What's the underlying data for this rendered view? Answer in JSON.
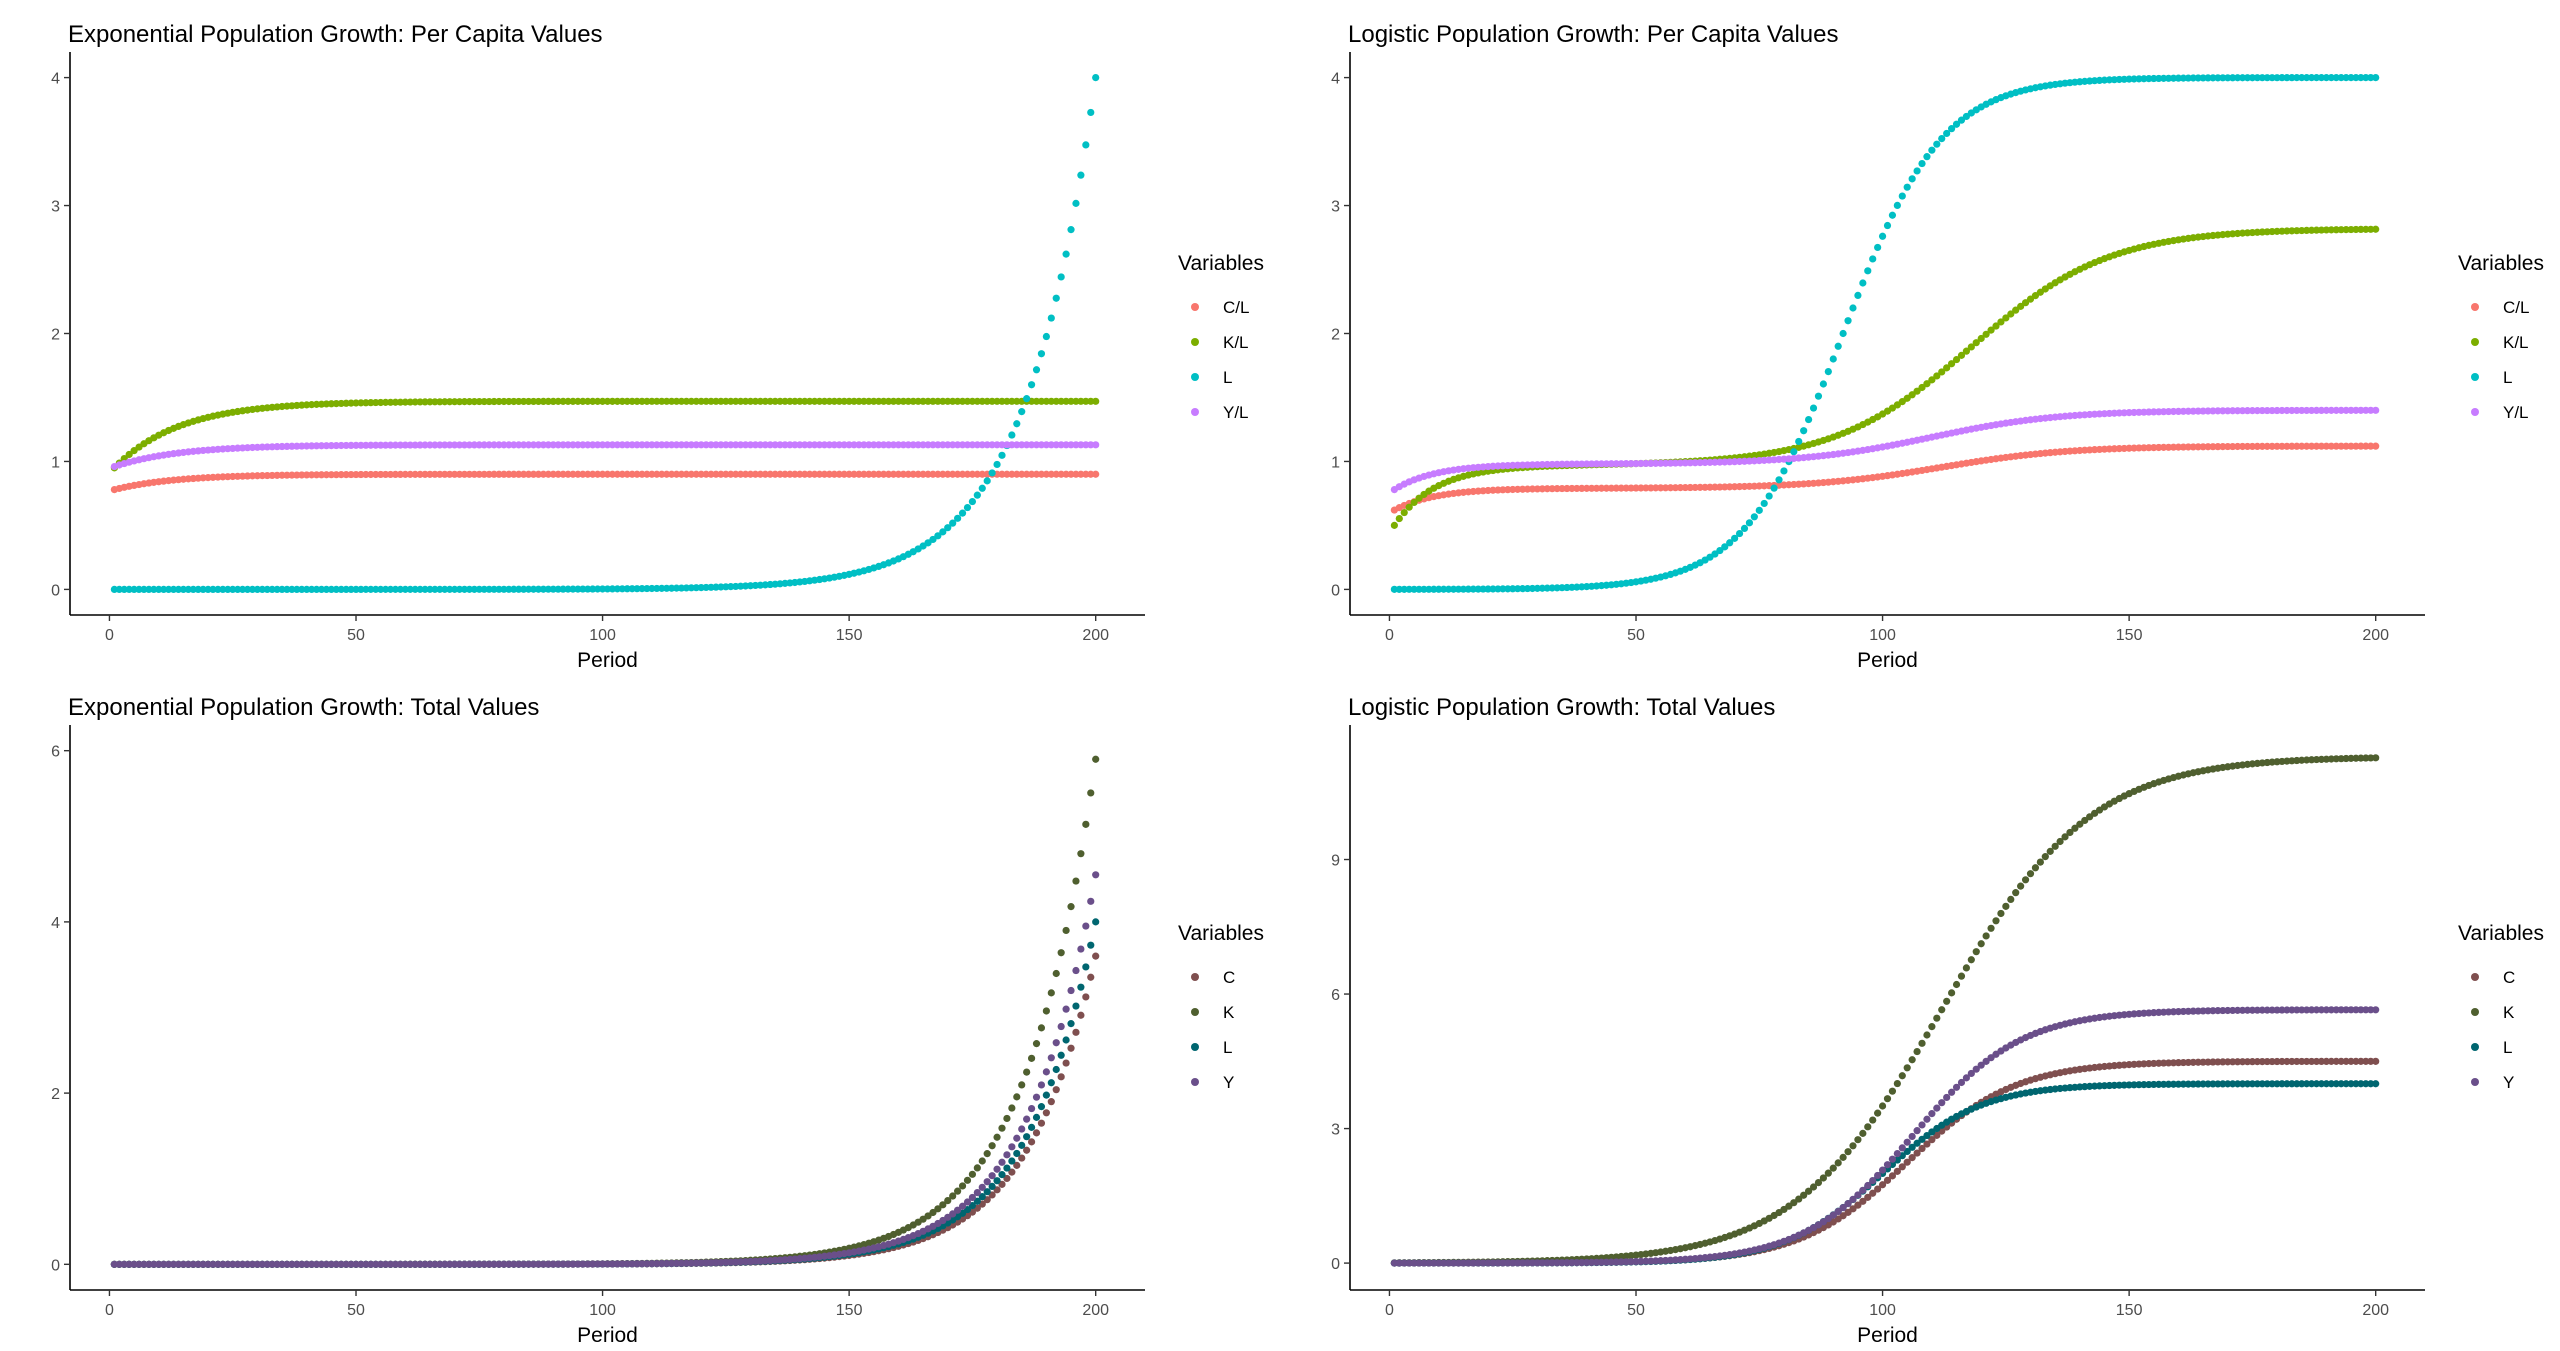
{
  "chart_data": [
    {
      "type": "scatter",
      "title": "Exponential Population Growth: Per Capita Values",
      "xlabel": "Period",
      "ylabel": "",
      "xlim": [
        1,
        200
      ],
      "ylim": [
        -0.2,
        4.2
      ],
      "xticks": [
        "0",
        "50",
        "100",
        "150",
        "200"
      ],
      "yticks": [
        "0",
        "1",
        "2",
        "3",
        "4"
      ],
      "grid": false,
      "legend": {
        "title": "Variables",
        "position": "right",
        "entries": [
          "C/L",
          "K/L",
          "L",
          "Y/L"
        ]
      },
      "series": [
        {
          "name": "C/L",
          "color": "#f8766d",
          "model": "saturating",
          "start": 0.78,
          "end": 0.9,
          "rate": 0.08
        },
        {
          "name": "K/L",
          "color": "#7cae00",
          "model": "saturating",
          "start": 0.95,
          "end": 1.47,
          "rate": 0.075
        },
        {
          "name": "L",
          "color": "#00bfc4",
          "model": "exponential",
          "start": 0.0,
          "end": 4.0,
          "growth": 0.0705
        },
        {
          "name": "Y/L",
          "color": "#c77cff",
          "model": "saturating",
          "start": 0.96,
          "end": 1.13,
          "rate": 0.075
        }
      ]
    },
    {
      "type": "scatter",
      "title": "Logistic Population Growth: Per Capita Values",
      "xlabel": "Period",
      "ylabel": "",
      "xlim": [
        1,
        200
      ],
      "ylim": [
        -0.2,
        4.2
      ],
      "xticks": [
        "0",
        "50",
        "100",
        "150",
        "200"
      ],
      "yticks": [
        "0",
        "1",
        "2",
        "3",
        "4"
      ],
      "grid": false,
      "legend": {
        "title": "Variables",
        "position": "right",
        "entries": [
          "C/L",
          "K/L",
          "L",
          "Y/L"
        ]
      },
      "series": [
        {
          "name": "C/L",
          "color": "#f8766d",
          "model": "two-stage",
          "start": 0.62,
          "plateau": 0.79,
          "rate": 0.12,
          "end": 1.12,
          "mid": 112,
          "scale": 13
        },
        {
          "name": "K/L",
          "color": "#7cae00",
          "model": "two-stage",
          "start": 0.5,
          "plateau": 0.97,
          "rate": 0.12,
          "end": 2.82,
          "mid": 118,
          "scale": 14
        },
        {
          "name": "L",
          "color": "#00bfc4",
          "model": "logistic",
          "end": 4.0,
          "mid": 92,
          "scale": 10
        },
        {
          "name": "Y/L",
          "color": "#c77cff",
          "model": "two-stage",
          "start": 0.78,
          "plateau": 0.98,
          "rate": 0.12,
          "end": 1.4,
          "mid": 110,
          "scale": 13
        }
      ]
    },
    {
      "type": "scatter",
      "title": "Exponential Population Growth: Total Values",
      "xlabel": "Period",
      "ylabel": "",
      "xlim": [
        1,
        200
      ],
      "ylim": [
        -0.3,
        6.3
      ],
      "xticks": [
        "0",
        "50",
        "100",
        "150",
        "200"
      ],
      "yticks": [
        "0",
        "2",
        "4",
        "6"
      ],
      "grid": false,
      "legend": {
        "title": "Variables",
        "position": "right",
        "entries": [
          "C",
          "K",
          "L",
          "Y"
        ]
      },
      "series": [
        {
          "name": "C",
          "color": "#7f4f4f",
          "model": "exponential",
          "start": 0.0,
          "end": 3.6,
          "growth": 0.071
        },
        {
          "name": "K",
          "color": "#4f5f2f",
          "model": "exponential",
          "start": 0.0,
          "end": 5.9,
          "growth": 0.069
        },
        {
          "name": "L",
          "color": "#006670",
          "model": "exponential",
          "start": 0.0,
          "end": 4.0,
          "growth": 0.0705
        },
        {
          "name": "Y",
          "color": "#6a4f8a",
          "model": "exponential",
          "start": 0.0,
          "end": 4.55,
          "growth": 0.0705
        }
      ]
    },
    {
      "type": "scatter",
      "title": "Logistic Population Growth: Total Values",
      "xlabel": "Period",
      "ylabel": "",
      "xlim": [
        1,
        200
      ],
      "ylim": [
        -0.6,
        12.0
      ],
      "xticks": [
        "0",
        "50",
        "100",
        "150",
        "200"
      ],
      "yticks": [
        "0",
        "3",
        "6",
        "9"
      ],
      "grid": false,
      "legend": {
        "title": "Variables",
        "position": "right",
        "entries": [
          "C",
          "K",
          "L",
          "Y"
        ]
      },
      "series": [
        {
          "name": "C",
          "color": "#7f4f4f",
          "model": "logistic",
          "end": 4.5,
          "mid": 105,
          "scale": 11
        },
        {
          "name": "K",
          "color": "#4f5f2f",
          "model": "logistic",
          "end": 11.3,
          "mid": 112,
          "scale": 15
        },
        {
          "name": "L",
          "color": "#006670",
          "model": "logistic",
          "end": 4.0,
          "mid": 100,
          "scale": 10
        },
        {
          "name": "Y",
          "color": "#6a4f8a",
          "model": "logistic",
          "end": 5.65,
          "mid": 106,
          "scale": 11
        }
      ]
    }
  ]
}
